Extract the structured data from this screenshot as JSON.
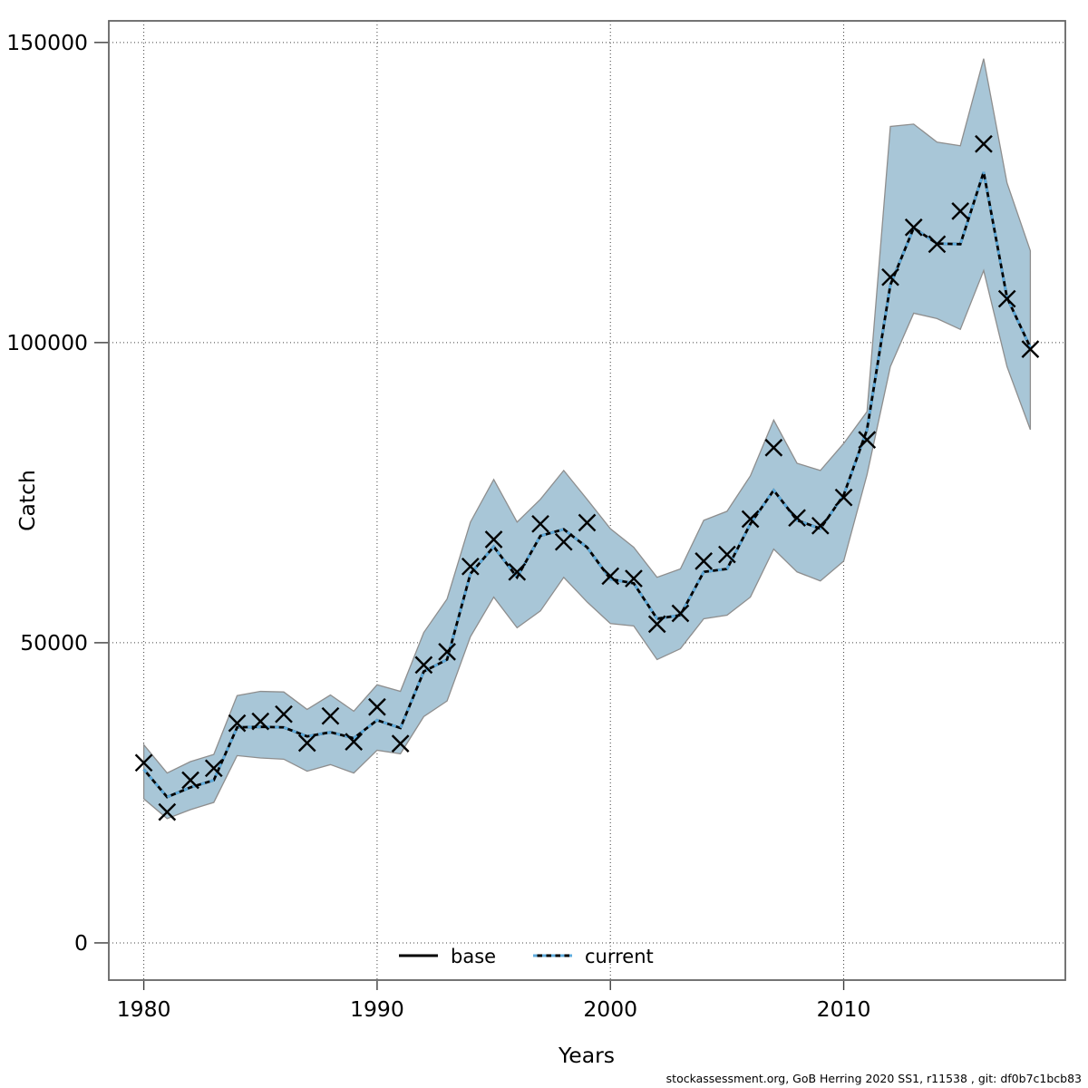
{
  "footer": {
    "text": "stockassessment.org, GoB Herring 2020 SS1, r11538 , git: df0b7c1bcb83"
  },
  "chart_data": {
    "type": "line",
    "title": "",
    "xlabel": "Years",
    "ylabel": "Catch",
    "x": [
      1980,
      1981,
      1982,
      1983,
      1984,
      1985,
      1986,
      1987,
      1988,
      1989,
      1990,
      1991,
      1992,
      1993,
      1994,
      1995,
      1996,
      1997,
      1998,
      1999,
      2000,
      2001,
      2002,
      2003,
      2004,
      2005,
      2006,
      2007,
      2008,
      2009,
      2010,
      2011,
      2012,
      2013,
      2014,
      2015,
      2016,
      2017,
      2018
    ],
    "series": [
      {
        "name": "base",
        "style": "solid",
        "color": "#000000",
        "values": [
          28900,
          24300,
          25900,
          27100,
          35900,
          36000,
          35900,
          34400,
          35100,
          34100,
          37100,
          35800,
          45200,
          47200,
          61500,
          66000,
          60900,
          67800,
          68900,
          65900,
          60600,
          59900,
          54000,
          54600,
          61800,
          62300,
          69800,
          75400,
          70400,
          69000,
          74600,
          85500,
          109600,
          119100,
          116500,
          116400,
          128400,
          107500,
          99200
        ]
      },
      {
        "name": "current",
        "style": "dotted",
        "color": "#5eabdc",
        "values": [
          28900,
          24300,
          25900,
          27100,
          35900,
          36000,
          35900,
          34400,
          35100,
          34100,
          37100,
          35800,
          45200,
          47200,
          61500,
          66000,
          60900,
          67800,
          68900,
          65900,
          60600,
          59900,
          54000,
          54600,
          61800,
          62300,
          69800,
          75400,
          70400,
          69000,
          74600,
          85500,
          109600,
          119100,
          116500,
          116400,
          128400,
          107500,
          99200
        ]
      },
      {
        "name": "observed-catch-markers",
        "style": "x-markers",
        "color": "#000000",
        "values": [
          30000,
          21800,
          27100,
          29100,
          36600,
          36900,
          38100,
          33300,
          37800,
          33500,
          39300,
          33200,
          46300,
          48500,
          62700,
          67200,
          61800,
          69800,
          66800,
          70000,
          61100,
          60700,
          53100,
          54900,
          63600,
          64700,
          70600,
          82500,
          70800,
          69500,
          74200,
          83800,
          110900,
          119200,
          116400,
          121900,
          133100,
          107300,
          98900
        ]
      }
    ],
    "band": {
      "name": "current-confidence-interval",
      "fill_color": "#a8c6d7",
      "edge_color": "#8e8e8e",
      "lower": [
        24000,
        20700,
        22200,
        23400,
        31200,
        30800,
        30600,
        28600,
        29700,
        28300,
        32100,
        31500,
        37700,
        40300,
        51000,
        57600,
        52500,
        55300,
        60900,
        56800,
        53200,
        52800,
        47200,
        49000,
        54000,
        54600,
        57600,
        65600,
        61800,
        60300,
        63600,
        78000,
        96000,
        104900,
        104000,
        102200,
        112000,
        96000,
        85500
      ],
      "upper": [
        33000,
        28300,
        30200,
        31400,
        41200,
        41900,
        41800,
        38900,
        41300,
        38600,
        43000,
        41900,
        51700,
        57300,
        70100,
        77200,
        70100,
        73900,
        78700,
        73900,
        69000,
        65900,
        60900,
        62300,
        70400,
        71900,
        77800,
        87100,
        79900,
        78700,
        83200,
        88500,
        136000,
        136400,
        133400,
        132800,
        147300,
        126600,
        115300
      ]
    },
    "x_ticks": [
      1980,
      1990,
      2000,
      2010
    ],
    "y_ticks": [
      0,
      50000,
      100000,
      150000
    ],
    "xlim": [
      1978.5,
      2019.5
    ],
    "ylim": [
      -6200,
      153600
    ],
    "grid": "dotted-major",
    "legend": [
      {
        "label": "base",
        "style": "solid",
        "color": "#000000"
      },
      {
        "label": "current",
        "style": "dotted",
        "color": "#5eabdc"
      }
    ],
    "legend_position": "bottom-center-inside"
  }
}
